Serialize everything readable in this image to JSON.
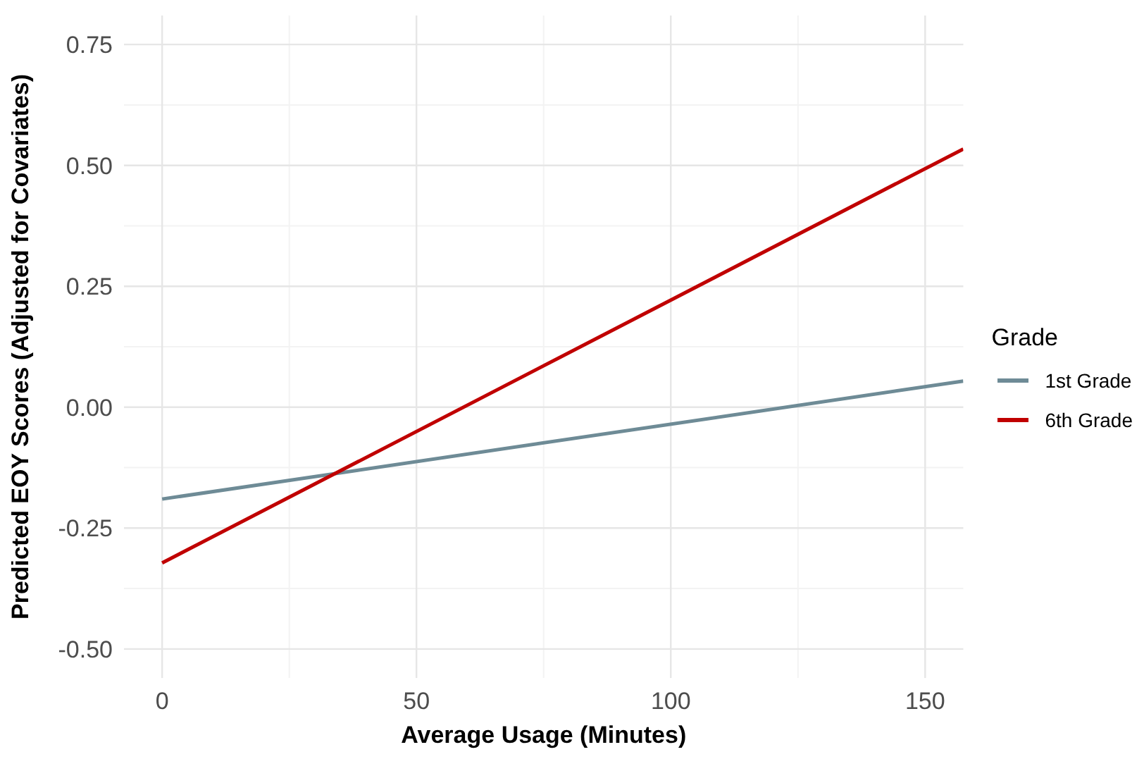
{
  "chart_data": {
    "type": "line",
    "xlabel": "Average Usage (Minutes)",
    "ylabel": "Predicted EOY Scores (Adjusted for Covariates)",
    "legend_title": "Grade",
    "x": [
      0,
      157.5
    ],
    "series": [
      {
        "name": "1st Grade",
        "color": "#6e8b96",
        "values": [
          -0.19,
          0.054
        ]
      },
      {
        "name": "6th Grade",
        "color": "#c00000",
        "values": [
          -0.322,
          0.534
        ]
      }
    ],
    "xlim": [
      -7.5,
      157.5
    ],
    "xticks": [
      0,
      50,
      100,
      150
    ],
    "ylim": [
      -0.56,
      0.81
    ],
    "yticks": [
      {
        "value": -0.5,
        "label": "-0.50"
      },
      {
        "value": -0.25,
        "label": "-0.25"
      },
      {
        "value": 0,
        "label": "0.00"
      },
      {
        "value": 0.25,
        "label": "0.25"
      },
      {
        "value": 0.5,
        "label": "0.50"
      },
      {
        "value": 0.75,
        "label": "0.75"
      }
    ],
    "grid": true,
    "legend": "right",
    "marker": "none",
    "line_style": "solid"
  }
}
